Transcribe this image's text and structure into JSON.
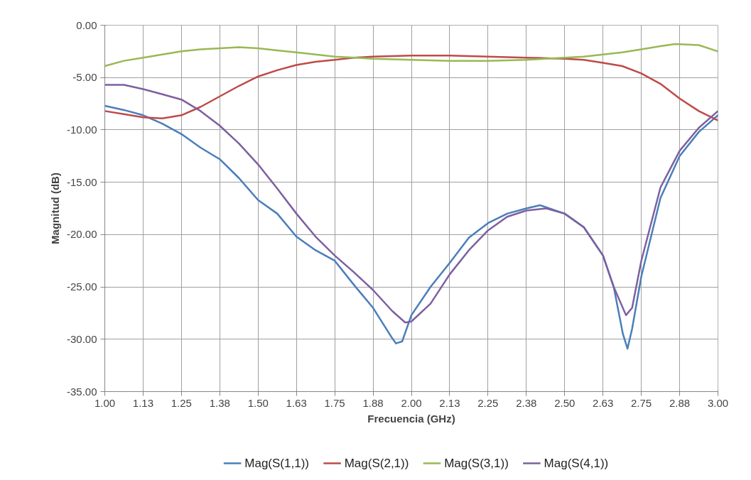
{
  "chart_data": {
    "type": "line",
    "xlabel": "Frecuencia (GHz)",
    "ylabel": "Magnitud (dB)",
    "xlim": [
      1.0,
      3.0
    ],
    "ylim": [
      -35,
      0
    ],
    "xticks": [
      {
        "value": 1.0,
        "label": "1.00"
      },
      {
        "value": 1.125,
        "label": "1.13"
      },
      {
        "value": 1.25,
        "label": "1.25"
      },
      {
        "value": 1.375,
        "label": "1.38"
      },
      {
        "value": 1.5,
        "label": "1.50"
      },
      {
        "value": 1.625,
        "label": "1.63"
      },
      {
        "value": 1.75,
        "label": "1.75"
      },
      {
        "value": 1.875,
        "label": "1.88"
      },
      {
        "value": 2.0,
        "label": "2.00"
      },
      {
        "value": 2.125,
        "label": "2.13"
      },
      {
        "value": 2.25,
        "label": "2.25"
      },
      {
        "value": 2.375,
        "label": "2.38"
      },
      {
        "value": 2.5,
        "label": "2.50"
      },
      {
        "value": 2.625,
        "label": "2.63"
      },
      {
        "value": 2.75,
        "label": "2.75"
      },
      {
        "value": 2.875,
        "label": "2.88"
      },
      {
        "value": 3.0,
        "label": "3.00"
      }
    ],
    "yticks": [
      {
        "value": 0,
        "label": "0.00"
      },
      {
        "value": -5,
        "label": "-5.00"
      },
      {
        "value": -10,
        "label": "-10.00"
      },
      {
        "value": -15,
        "label": "-15.00"
      },
      {
        "value": -20,
        "label": "-20.00"
      },
      {
        "value": -25,
        "label": "-25.00"
      },
      {
        "value": -30,
        "label": "-30.00"
      },
      {
        "value": -35,
        "label": "-35.00"
      }
    ],
    "grid": true,
    "legend": "bottom",
    "marker": "none",
    "line_style": "solid",
    "series": [
      {
        "name": "Mag(S(1,1))",
        "color": "#4a7ebb",
        "x": [
          1.0,
          1.0625,
          1.125,
          1.1875,
          1.25,
          1.3125,
          1.375,
          1.4375,
          1.5,
          1.5625,
          1.625,
          1.6875,
          1.75,
          1.8125,
          1.875,
          1.9375,
          1.95,
          1.97,
          2.0,
          2.0625,
          2.125,
          2.1875,
          2.25,
          2.3125,
          2.375,
          2.42,
          2.5,
          2.5625,
          2.625,
          2.66,
          2.69,
          2.705,
          2.72,
          2.75,
          2.8125,
          2.875,
          2.9375,
          3.0
        ],
        "values": [
          -7.7,
          -8.1,
          -8.6,
          -9.4,
          -10.4,
          -11.7,
          -12.8,
          -14.6,
          -16.7,
          -18.0,
          -20.2,
          -21.5,
          -22.5,
          -24.8,
          -27.0,
          -29.9,
          -30.4,
          -30.2,
          -27.7,
          -25.0,
          -22.7,
          -20.3,
          -18.9,
          -18.0,
          -17.5,
          -17.2,
          -18.0,
          -19.3,
          -22.0,
          -25.0,
          -29.5,
          -30.9,
          -29.0,
          -24.0,
          -16.5,
          -12.5,
          -10.2,
          -8.6
        ]
      },
      {
        "name": "Mag(S(2,1))",
        "color": "#be4b48",
        "x": [
          1.0,
          1.0625,
          1.125,
          1.1875,
          1.25,
          1.3125,
          1.375,
          1.4375,
          1.5,
          1.5625,
          1.625,
          1.6875,
          1.75,
          1.8125,
          1.875,
          2.0,
          2.125,
          2.25,
          2.375,
          2.5,
          2.5625,
          2.625,
          2.6875,
          2.75,
          2.8125,
          2.875,
          2.9375,
          3.0
        ],
        "values": [
          -8.2,
          -8.5,
          -8.8,
          -8.9,
          -8.6,
          -7.8,
          -6.8,
          -5.8,
          -4.9,
          -4.3,
          -3.8,
          -3.5,
          -3.3,
          -3.1,
          -3.0,
          -2.9,
          -2.9,
          -3.0,
          -3.1,
          -3.2,
          -3.3,
          -3.6,
          -3.9,
          -4.6,
          -5.6,
          -7.0,
          -8.2,
          -9.1
        ]
      },
      {
        "name": "Mag(S(3,1))",
        "color": "#98b954",
        "x": [
          1.0,
          1.0625,
          1.125,
          1.1875,
          1.25,
          1.3125,
          1.375,
          1.4375,
          1.5,
          1.5625,
          1.625,
          1.6875,
          1.75,
          1.875,
          2.0,
          2.125,
          2.25,
          2.375,
          2.5,
          2.5625,
          2.625,
          2.6875,
          2.75,
          2.8125,
          2.86,
          2.9375,
          3.0
        ],
        "values": [
          -3.9,
          -3.4,
          -3.1,
          -2.8,
          -2.5,
          -2.3,
          -2.2,
          -2.1,
          -2.2,
          -2.4,
          -2.6,
          -2.8,
          -3.0,
          -3.2,
          -3.3,
          -3.4,
          -3.4,
          -3.3,
          -3.1,
          -3.0,
          -2.8,
          -2.6,
          -2.3,
          -2.0,
          -1.8,
          -1.9,
          -2.5
        ]
      },
      {
        "name": "Mag(S(4,1))",
        "color": "#7d60a0",
        "x": [
          1.0,
          1.0625,
          1.125,
          1.1875,
          1.25,
          1.3125,
          1.375,
          1.4375,
          1.5,
          1.5625,
          1.625,
          1.6875,
          1.75,
          1.8125,
          1.875,
          1.9375,
          1.98,
          2.0,
          2.0625,
          2.125,
          2.1875,
          2.25,
          2.3125,
          2.375,
          2.44,
          2.5,
          2.5625,
          2.625,
          2.66,
          2.7,
          2.72,
          2.75,
          2.8125,
          2.875,
          2.9375,
          3.0
        ],
        "values": [
          -5.7,
          -5.7,
          -6.1,
          -6.6,
          -7.1,
          -8.2,
          -9.6,
          -11.3,
          -13.3,
          -15.6,
          -18.0,
          -20.2,
          -22.0,
          -23.6,
          -25.3,
          -27.3,
          -28.4,
          -28.3,
          -26.6,
          -23.8,
          -21.5,
          -19.6,
          -18.3,
          -17.7,
          -17.5,
          -18.0,
          -19.3,
          -22.0,
          -25.0,
          -27.7,
          -27.0,
          -22.5,
          -15.5,
          -12.0,
          -9.8,
          -8.2
        ]
      }
    ]
  }
}
